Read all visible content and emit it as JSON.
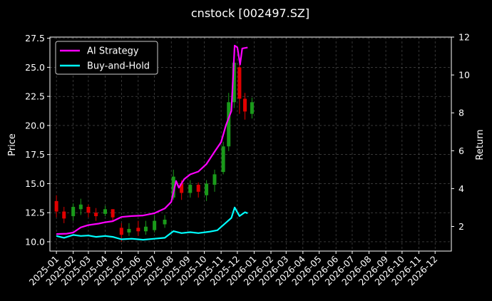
{
  "chart_data": {
    "type": "line",
    "title": "cnstock [002497.SZ]",
    "ylabel_left": "Price",
    "ylabel_right": "Return",
    "ylim_left": [
      9.2,
      27.6
    ],
    "yticks_left": [
      "10.0",
      "12.5",
      "15.0",
      "17.5",
      "20.0",
      "22.5",
      "25.0",
      "27.5"
    ],
    "ylim_right": [
      0.7,
      12.0
    ],
    "yticks_right": [
      "2",
      "4",
      "6",
      "8",
      "10",
      "12"
    ],
    "x_ticks": [
      "2025-01",
      "2025-02",
      "2025-03",
      "2025-04",
      "2025-05",
      "2025-06",
      "2025-07",
      "2025-08",
      "2025-09",
      "2025-10",
      "2025-11",
      "2025-12",
      "2026-01",
      "2026-02",
      "2026-03",
      "2026-04",
      "2026-05",
      "2026-06",
      "2026-07",
      "2026-08",
      "2026-09",
      "2026-10",
      "2026-11",
      "2026-12"
    ],
    "x_range": [
      "2024-12-20",
      "2026-12-31"
    ],
    "grid": true,
    "legend_position": "top-left",
    "price_candles": [
      {
        "date": "2025-01-01",
        "low": 12.1,
        "high": 14.0,
        "open": 13.5,
        "close": 12.6
      },
      {
        "date": "2025-01-15",
        "low": 11.6,
        "high": 13.0,
        "open": 12.6,
        "close": 12.0
      },
      {
        "date": "2025-02-01",
        "low": 11.8,
        "high": 13.3,
        "open": 12.2,
        "close": 13.0
      },
      {
        "date": "2025-02-15",
        "low": 12.3,
        "high": 13.7,
        "open": 12.8,
        "close": 13.2
      },
      {
        "date": "2025-03-01",
        "low": 12.1,
        "high": 13.2,
        "open": 13.0,
        "close": 12.5
      },
      {
        "date": "2025-03-15",
        "low": 11.8,
        "high": 12.9,
        "open": 12.5,
        "close": 12.2
      },
      {
        "date": "2025-04-01",
        "low": 12.2,
        "high": 13.1,
        "open": 12.4,
        "close": 12.8
      },
      {
        "date": "2025-04-15",
        "low": 11.8,
        "high": 12.8,
        "open": 12.8,
        "close": 12.1
      },
      {
        "date": "2025-05-01",
        "low": 10.0,
        "high": 11.6,
        "open": 11.2,
        "close": 10.6
      },
      {
        "date": "2025-05-15",
        "low": 10.5,
        "high": 11.6,
        "open": 10.8,
        "close": 11.1
      },
      {
        "date": "2025-06-01",
        "low": 10.5,
        "high": 11.8,
        "open": 11.2,
        "close": 10.9
      },
      {
        "date": "2025-06-15",
        "low": 10.6,
        "high": 11.8,
        "open": 10.9,
        "close": 11.3
      },
      {
        "date": "2025-07-01",
        "low": 10.8,
        "high": 12.3,
        "open": 11.0,
        "close": 11.8
      },
      {
        "date": "2025-07-20",
        "low": 11.2,
        "high": 12.3,
        "open": 11.5,
        "close": 11.9
      },
      {
        "date": "2025-08-05",
        "low": 13.6,
        "high": 16.2,
        "open": 13.8,
        "close": 15.6
      },
      {
        "date": "2025-08-20",
        "low": 13.6,
        "high": 15.3,
        "open": 15.0,
        "close": 14.2
      },
      {
        "date": "2025-09-05",
        "low": 13.8,
        "high": 15.3,
        "open": 14.2,
        "close": 14.9
      },
      {
        "date": "2025-09-20",
        "low": 13.8,
        "high": 15.1,
        "open": 14.9,
        "close": 14.3
      },
      {
        "date": "2025-10-05",
        "low": 13.5,
        "high": 15.3,
        "open": 14.0,
        "close": 15.0
      },
      {
        "date": "2025-10-20",
        "low": 14.3,
        "high": 16.2,
        "open": 14.9,
        "close": 15.8
      },
      {
        "date": "2025-11-05",
        "low": 15.8,
        "high": 18.6,
        "open": 16.0,
        "close": 18.2
      },
      {
        "date": "2025-11-15",
        "low": 17.8,
        "high": 22.8,
        "open": 18.2,
        "close": 22.0
      },
      {
        "date": "2025-11-25",
        "low": 21.5,
        "high": 26.6,
        "open": 22.0,
        "close": 25.4
      },
      {
        "date": "2025-12-05",
        "low": 21.0,
        "high": 25.3,
        "open": 25.0,
        "close": 22.3
      },
      {
        "date": "2025-12-15",
        "low": 20.5,
        "high": 22.8,
        "open": 22.3,
        "close": 21.2
      },
      {
        "date": "2025-12-28",
        "low": 20.6,
        "high": 22.4,
        "open": 21.0,
        "close": 22.0
      }
    ],
    "series": [
      {
        "name": "AI Strategy",
        "color": "#ff00ff",
        "points": [
          [
            "2025-01-01",
            1.6
          ],
          [
            "2025-01-20",
            1.62
          ],
          [
            "2025-02-01",
            1.68
          ],
          [
            "2025-02-15",
            1.95
          ],
          [
            "2025-03-01",
            2.07
          ],
          [
            "2025-03-20",
            2.15
          ],
          [
            "2025-04-01",
            2.22
          ],
          [
            "2025-04-15",
            2.28
          ],
          [
            "2025-05-01",
            2.5
          ],
          [
            "2025-05-20",
            2.55
          ],
          [
            "2025-06-10",
            2.58
          ],
          [
            "2025-07-01",
            2.7
          ],
          [
            "2025-07-20",
            2.95
          ],
          [
            "2025-08-01",
            3.3
          ],
          [
            "2025-08-10",
            4.4
          ],
          [
            "2025-08-15",
            4.05
          ],
          [
            "2025-08-25",
            4.5
          ],
          [
            "2025-09-05",
            4.75
          ],
          [
            "2025-09-20",
            4.9
          ],
          [
            "2025-10-05",
            5.3
          ],
          [
            "2025-10-20",
            5.95
          ],
          [
            "2025-11-01",
            6.45
          ],
          [
            "2025-11-10",
            7.35
          ],
          [
            "2025-11-20",
            8.1
          ],
          [
            "2025-11-26",
            11.55
          ],
          [
            "2025-12-01",
            11.45
          ],
          [
            "2025-12-06",
            10.55
          ],
          [
            "2025-12-10",
            11.4
          ],
          [
            "2025-12-20",
            11.45
          ]
        ]
      },
      {
        "name": "Buy-and-Hold",
        "color": "#00ffff",
        "points": [
          [
            "2025-01-01",
            1.5
          ],
          [
            "2025-01-15",
            1.4
          ],
          [
            "2025-02-01",
            1.55
          ],
          [
            "2025-02-15",
            1.5
          ],
          [
            "2025-03-01",
            1.52
          ],
          [
            "2025-03-15",
            1.45
          ],
          [
            "2025-04-01",
            1.5
          ],
          [
            "2025-04-15",
            1.45
          ],
          [
            "2025-05-01",
            1.32
          ],
          [
            "2025-05-20",
            1.35
          ],
          [
            "2025-06-10",
            1.3
          ],
          [
            "2025-07-01",
            1.35
          ],
          [
            "2025-07-20",
            1.4
          ],
          [
            "2025-08-05",
            1.75
          ],
          [
            "2025-08-20",
            1.65
          ],
          [
            "2025-09-05",
            1.7
          ],
          [
            "2025-09-20",
            1.65
          ],
          [
            "2025-10-10",
            1.72
          ],
          [
            "2025-10-25",
            1.8
          ],
          [
            "2025-11-10",
            2.2
          ],
          [
            "2025-11-20",
            2.45
          ],
          [
            "2025-11-26",
            3.0
          ],
          [
            "2025-12-05",
            2.55
          ],
          [
            "2025-12-15",
            2.75
          ],
          [
            "2025-12-20",
            2.7
          ]
        ]
      }
    ]
  }
}
